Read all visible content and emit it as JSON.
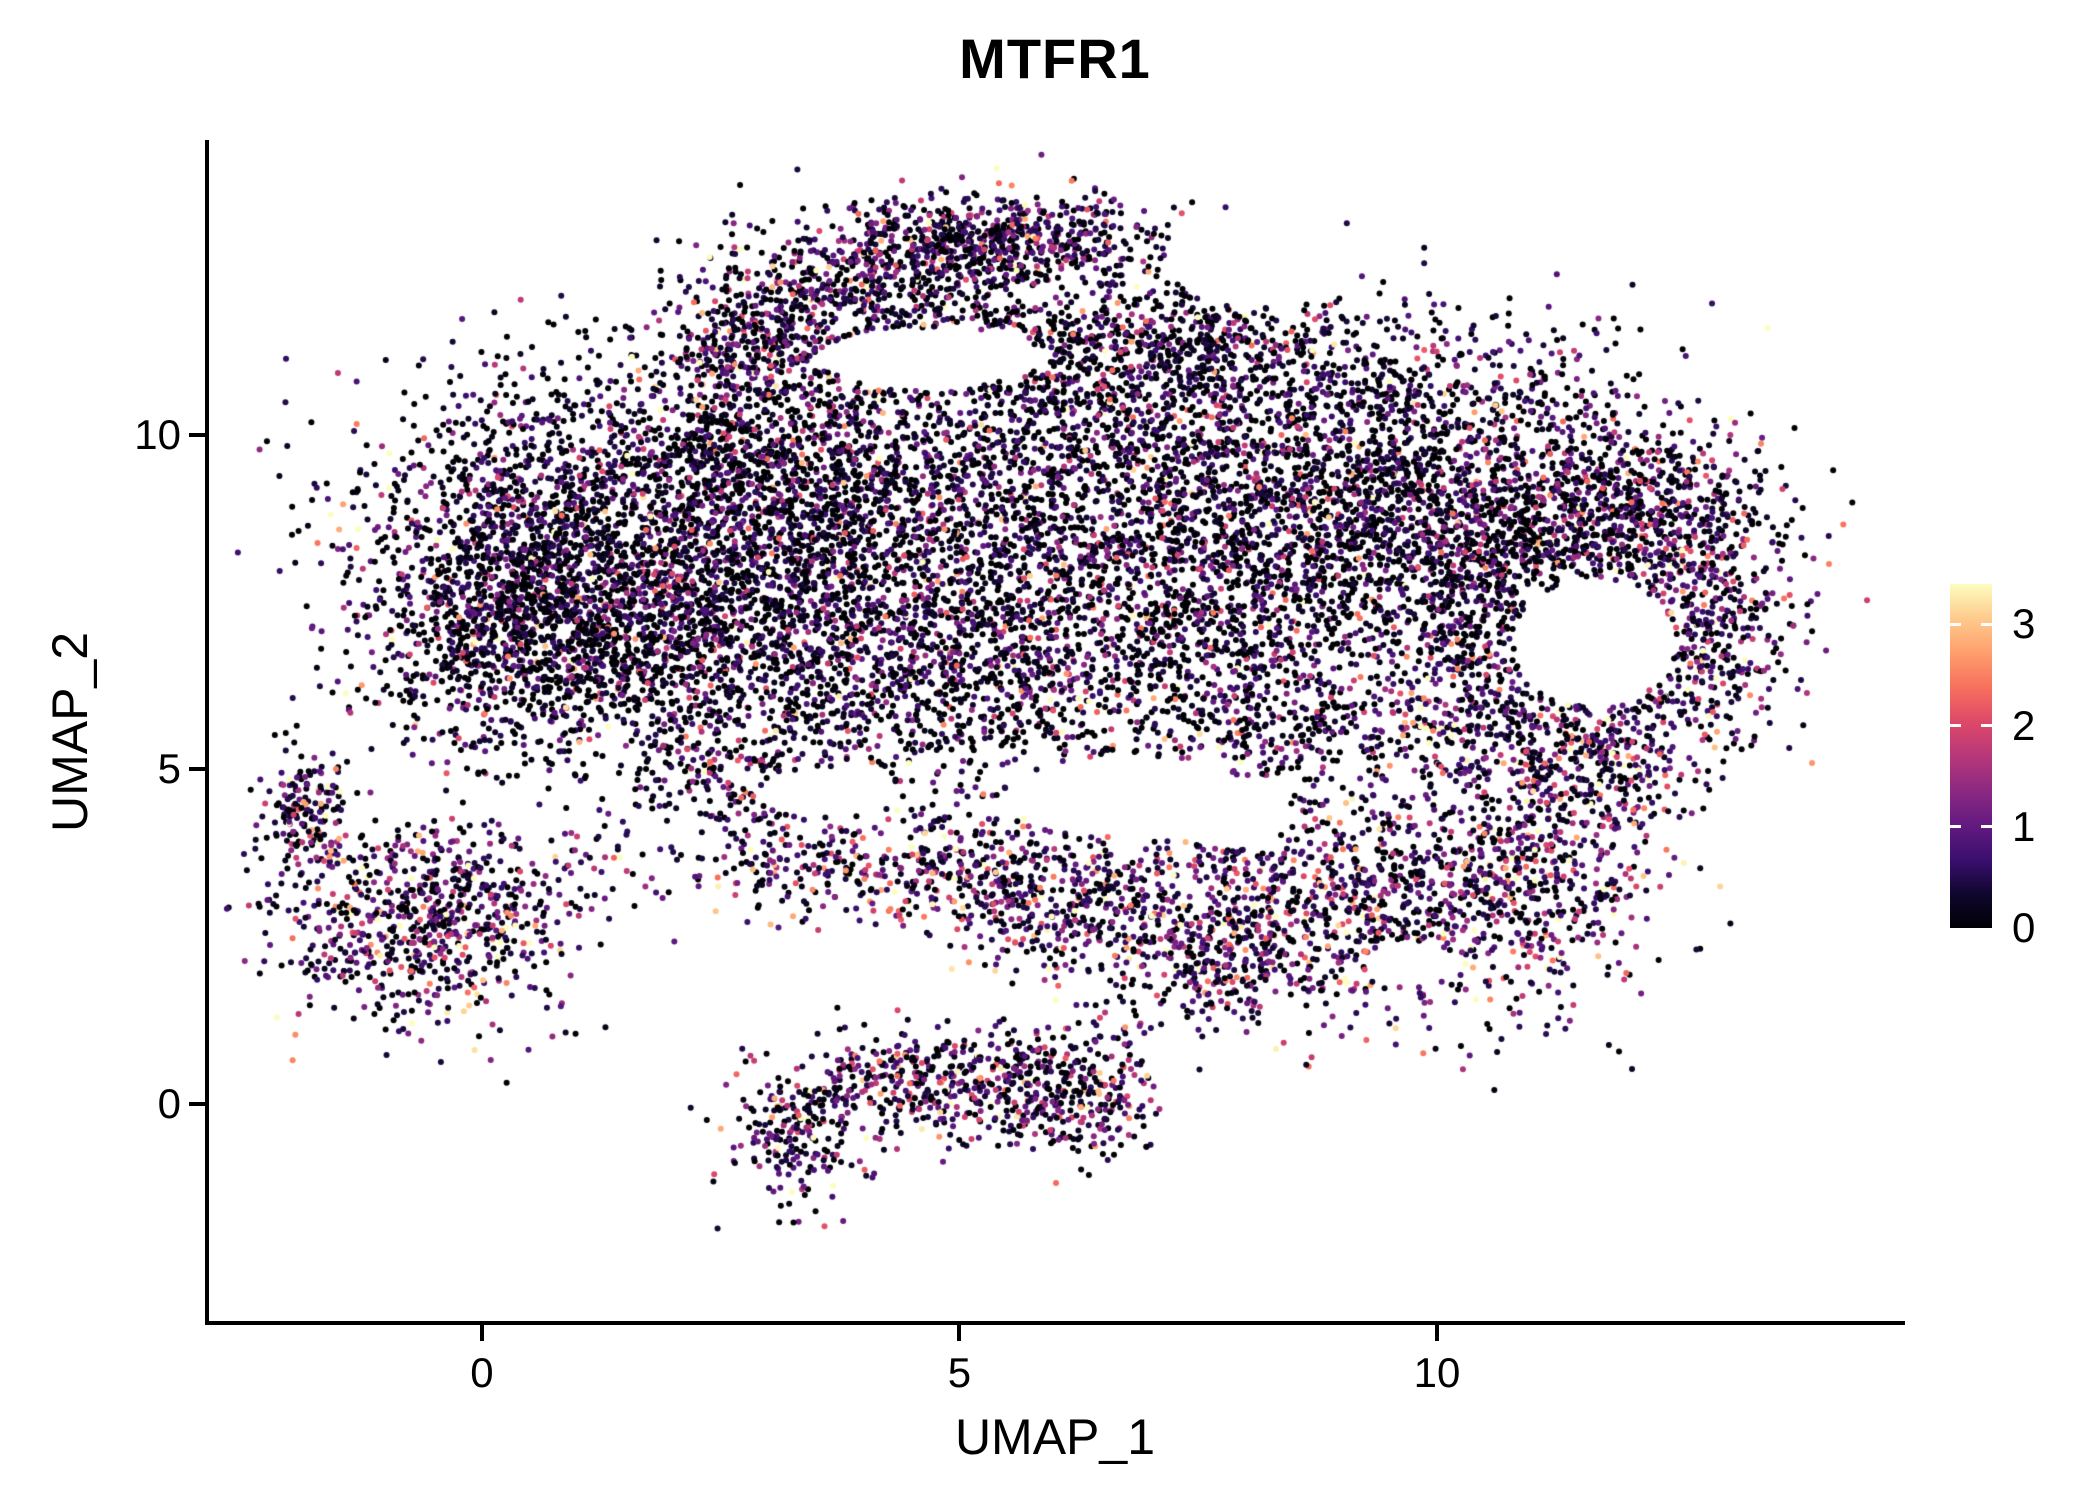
{
  "title": "MTFR1",
  "chart_data": {
    "type": "scatter",
    "title": "MTFR1",
    "xlabel": "UMAP_1",
    "ylabel": "UMAP_2",
    "xlim": [
      -2.9,
      14.9
    ],
    "ylim": [
      -3.3,
      14.4
    ],
    "x_ticks": [
      0,
      5,
      10
    ],
    "y_ticks": [
      0,
      5,
      10
    ],
    "grid": false,
    "background": "#ffffff",
    "axis_color": "#000000",
    "legend": {
      "type": "colorbar",
      "position": "right",
      "tick_values": [
        0,
        1,
        2,
        3
      ],
      "vmin": 0,
      "vmax": 3.4
    },
    "colormap": {
      "name": "magma",
      "stops": [
        [
          0.0,
          "#000004"
        ],
        [
          0.1,
          "#10072e"
        ],
        [
          0.2,
          "#3b0f70"
        ],
        [
          0.3,
          "#641a80"
        ],
        [
          0.4,
          "#8c2981"
        ],
        [
          0.5,
          "#b73779"
        ],
        [
          0.6,
          "#de4968"
        ],
        [
          0.7,
          "#f7705c"
        ],
        [
          0.8,
          "#fe9f6d"
        ],
        [
          0.9,
          "#feca8d"
        ],
        [
          1.0,
          "#fcfdbf"
        ]
      ]
    },
    "point": {
      "radius": 3.0,
      "seed": 42
    },
    "clusters": {
      "fields": [
        "n",
        "cx",
        "cy",
        "sx",
        "sy",
        "zero_frac",
        "expr_scale"
      ],
      "list": [
        [
          1800,
          1.6,
          8.6,
          1.4,
          1.3,
          0.32,
          0.7
        ],
        [
          1200,
          1.0,
          7.0,
          1.1,
          0.9,
          0.32,
          0.7
        ],
        [
          500,
          0.2,
          8.0,
          0.6,
          1.2,
          0.3,
          0.75
        ],
        [
          900,
          3.2,
          9.6,
          1.0,
          1.0,
          0.32,
          0.7
        ],
        [
          700,
          3.6,
          7.0,
          1.2,
          1.0,
          0.32,
          0.7
        ],
        [
          1000,
          5.2,
          8.6,
          1.3,
          1.3,
          0.33,
          0.7
        ],
        [
          600,
          5.0,
          6.2,
          1.3,
          0.8,
          0.3,
          0.75
        ],
        [
          1600,
          7.6,
          8.2,
          1.4,
          1.4,
          0.32,
          0.72
        ],
        [
          1000,
          9.3,
          8.8,
          1.2,
          1.2,
          0.3,
          0.75
        ],
        [
          700,
          10.8,
          9.0,
          1.0,
          0.9,
          0.3,
          0.78
        ],
        [
          500,
          12.0,
          8.8,
          0.8,
          0.7,
          0.28,
          0.8
        ],
        [
          450,
          12.8,
          7.3,
          0.5,
          1.0,
          0.2,
          0.95
        ],
        [
          350,
          11.0,
          5.6,
          0.9,
          0.5,
          0.2,
          0.95
        ],
        [
          280,
          10.4,
          7.2,
          0.45,
          0.8,
          0.25,
          0.85
        ],
        [
          600,
          6.8,
          11.4,
          1.3,
          0.6,
          0.3,
          0.75
        ],
        [
          700,
          5.3,
          12.9,
          1.0,
          0.35,
          0.22,
          0.9
        ],
        [
          400,
          3.9,
          12.1,
          0.8,
          0.5,
          0.22,
          0.9
        ],
        [
          250,
          2.9,
          11.4,
          0.5,
          0.5,
          0.25,
          0.85
        ],
        [
          500,
          9.0,
          10.8,
          1.5,
          0.6,
          0.3,
          0.75
        ],
        [
          300,
          6.2,
          10.2,
          1.0,
          0.7,
          0.32,
          0.7
        ],
        [
          500,
          4.5,
          3.6,
          1.6,
          0.45,
          0.15,
          1.05
        ],
        [
          350,
          6.0,
          2.9,
          0.8,
          0.5,
          0.15,
          1.05
        ],
        [
          900,
          9.2,
          2.9,
          1.2,
          0.9,
          0.16,
          1.0
        ],
        [
          450,
          10.9,
          3.6,
          0.7,
          0.8,
          0.16,
          1.0
        ],
        [
          250,
          7.6,
          2.2,
          0.6,
          0.5,
          0.16,
          1.0
        ],
        [
          800,
          -0.6,
          2.8,
          0.85,
          0.75,
          0.16,
          1.0
        ],
        [
          150,
          -1.85,
          4.35,
          0.22,
          0.45,
          0.15,
          1.1
        ],
        [
          220,
          3.3,
          -0.5,
          0.35,
          0.55,
          0.18,
          0.95
        ],
        [
          260,
          4.4,
          0.3,
          0.55,
          0.35,
          0.18,
          0.95
        ],
        [
          300,
          5.6,
          0.2,
          0.6,
          0.45,
          0.18,
          0.95
        ],
        [
          160,
          6.4,
          0.1,
          0.3,
          0.55,
          0.18,
          0.95
        ],
        [
          200,
          2.6,
          5.0,
          0.7,
          0.5,
          0.25,
          0.8
        ],
        [
          300,
          8.3,
          5.6,
          1.0,
          0.6,
          0.25,
          0.85
        ],
        [
          150,
          11.8,
          4.8,
          0.5,
          0.4,
          0.18,
          1.0
        ]
      ]
    },
    "holes": {
      "fields": [
        "cx",
        "cy",
        "rx",
        "ry"
      ],
      "list": [
        [
          11.65,
          6.9,
          0.85,
          0.95
        ],
        [
          6.8,
          4.6,
          1.3,
          0.6
        ],
        [
          8.15,
          12.6,
          1.0,
          0.7
        ],
        [
          4.7,
          11.15,
          1.2,
          0.45
        ],
        [
          3.6,
          4.65,
          0.7,
          0.35
        ],
        [
          9.7,
          2.1,
          0.45,
          0.35
        ],
        [
          7.8,
          4.3,
          0.7,
          0.45
        ]
      ]
    },
    "value_cap": 3.45
  }
}
